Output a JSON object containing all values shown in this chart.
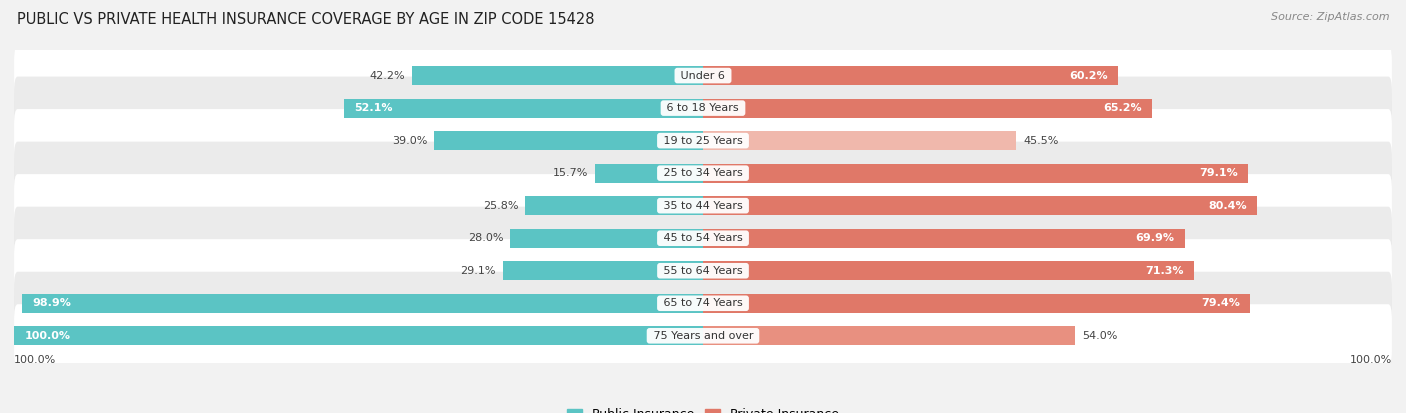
{
  "title": "PUBLIC VS PRIVATE HEALTH INSURANCE COVERAGE BY AGE IN ZIP CODE 15428",
  "source": "Source: ZipAtlas.com",
  "categories": [
    "Under 6",
    "6 to 18 Years",
    "19 to 25 Years",
    "25 to 34 Years",
    "35 to 44 Years",
    "45 to 54 Years",
    "55 to 64 Years",
    "65 to 74 Years",
    "75 Years and over"
  ],
  "public_values": [
    42.2,
    52.1,
    39.0,
    15.7,
    25.8,
    28.0,
    29.1,
    98.9,
    100.0
  ],
  "private_values": [
    60.2,
    65.2,
    45.5,
    79.1,
    80.4,
    69.9,
    71.3,
    79.4,
    54.0
  ],
  "public_color": "#5BC4C4",
  "private_color": "#E07868",
  "private_color_light": "#F0B8AC",
  "private_color_medium": "#E89080",
  "row_color_odd": "#FFFFFF",
  "row_color_even": "#EBEBEB",
  "background_color": "#F2F2F2",
  "bar_height": 0.58,
  "max_value": 100.0,
  "title_fontsize": 10.5,
  "source_fontsize": 8,
  "legend_fontsize": 9,
  "value_fontsize": 8,
  "cat_fontsize": 8,
  "x_label": "100.0%"
}
